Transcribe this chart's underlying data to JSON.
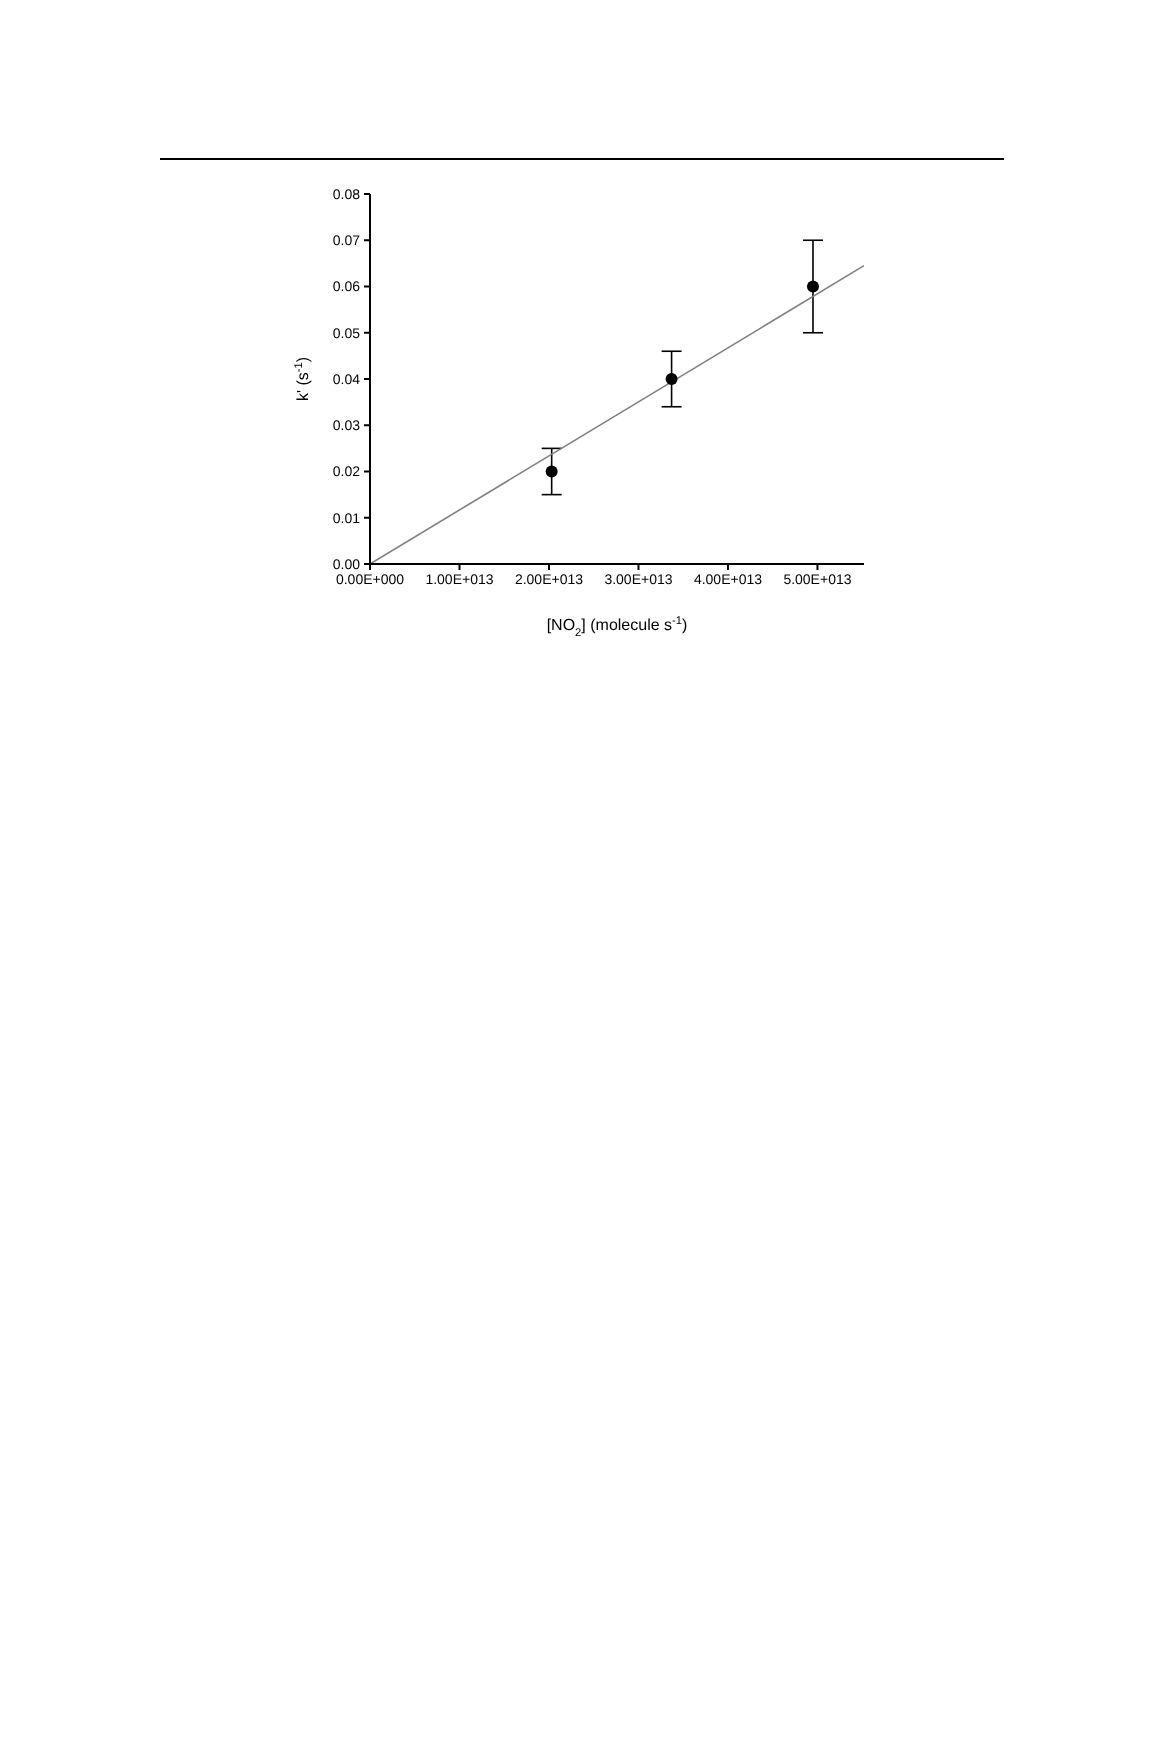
{
  "chart_data": {
    "type": "scatter",
    "xlabel": "[NO$_{2}$] (molecule s$^{-1}$)",
    "ylabel": "k' (s$^{-1}$)",
    "xlim": [
      0,
      55200000000000.0
    ],
    "ylim": [
      0,
      0.08
    ],
    "xticks": [
      {
        "value": 0,
        "label": "0.00E+000"
      },
      {
        "value": 10000000000000.0,
        "label": "1.00E+013"
      },
      {
        "value": 20000000000000.0,
        "label": "2.00E+013"
      },
      {
        "value": 30000000000000.0,
        "label": "3.00E+013"
      },
      {
        "value": 40000000000000.0,
        "label": "4.00E+013"
      },
      {
        "value": 50000000000000.0,
        "label": "5.00E+013"
      }
    ],
    "yticks": [
      {
        "value": 0,
        "label": "0.00"
      },
      {
        "value": 0.01,
        "label": "0.01"
      },
      {
        "value": 0.02,
        "label": "0.02"
      },
      {
        "value": 0.03,
        "label": "0.03"
      },
      {
        "value": 0.04,
        "label": "0.04"
      },
      {
        "value": 0.05,
        "label": "0.05"
      },
      {
        "value": 0.06,
        "label": "0.06"
      },
      {
        "value": 0.07,
        "label": "0.07"
      },
      {
        "value": 0.08,
        "label": "0.08"
      }
    ],
    "grid": false,
    "legend": false,
    "series": [
      {
        "color": "#000000",
        "marker": "circle",
        "x": [
          20300000000000.0,
          33700000000000.0,
          49500000000000.0
        ],
        "values": [
          0.02,
          0.04,
          0.06
        ],
        "errors": [
          [
            0.015,
            0.025
          ],
          [
            0.034,
            0.046
          ],
          [
            0.05,
            0.07
          ]
        ]
      },
      {
        "type": "line",
        "color": "#808080",
        "x": [
          0,
          55200000000000.0
        ],
        "values": [
          0,
          0.0645
        ],
        "line_style": "solid"
      }
    ]
  }
}
